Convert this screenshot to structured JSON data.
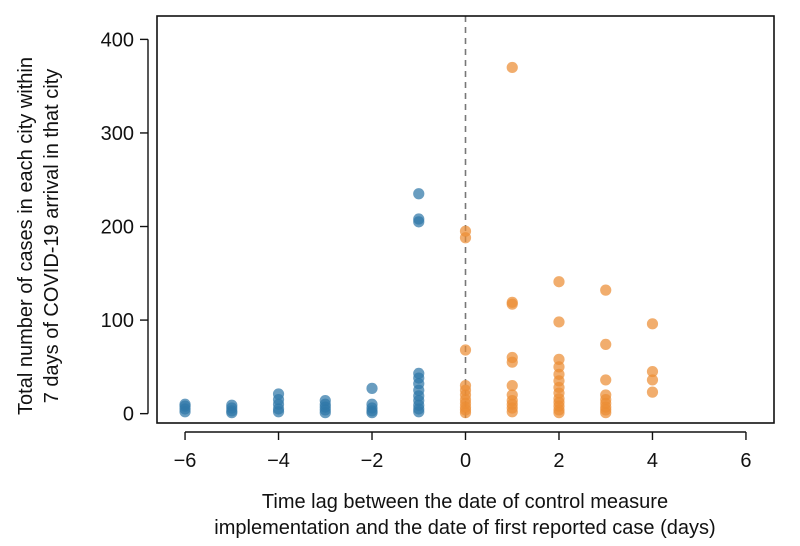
{
  "chart_data": {
    "type": "scatter",
    "title": "",
    "xlabel": [
      "Time lag between the date of control measure",
      "implementation and the date of first reported case (days)"
    ],
    "ylabel": [
      "Total number of cases in each city within",
      "7 days of COVID-19 arrival in that city"
    ],
    "xlim": [
      -6.6,
      6.6
    ],
    "ylim": [
      -10,
      425
    ],
    "xticks": [
      -6,
      -4,
      -2,
      0,
      2,
      4,
      6
    ],
    "xtick_labels": [
      "−6",
      "−4",
      "−2",
      "0",
      "2",
      "4",
      "6"
    ],
    "yticks": [
      0,
      100,
      200,
      300,
      400
    ],
    "ytick_labels": [
      "0",
      "100",
      "200",
      "300",
      "400"
    ],
    "reference_line": {
      "x": 0,
      "style": "dashed",
      "color": "#777777"
    },
    "grid": false,
    "legend": "none",
    "series": [
      {
        "color": "#2f77a8",
        "points": [
          [
            -6,
            2
          ],
          [
            -6,
            5
          ],
          [
            -6,
            8
          ],
          [
            -6,
            10
          ],
          [
            -5,
            1
          ],
          [
            -5,
            3
          ],
          [
            -5,
            6
          ],
          [
            -5,
            9
          ],
          [
            -4,
            2
          ],
          [
            -4,
            5
          ],
          [
            -4,
            10
          ],
          [
            -4,
            15
          ],
          [
            -4,
            21
          ],
          [
            -3,
            1
          ],
          [
            -3,
            4
          ],
          [
            -3,
            7
          ],
          [
            -3,
            10
          ],
          [
            -3,
            14
          ],
          [
            -2,
            1
          ],
          [
            -2,
            3
          ],
          [
            -2,
            6
          ],
          [
            -2,
            10
          ],
          [
            -2,
            27
          ],
          [
            -1,
            2
          ],
          [
            -1,
            5
          ],
          [
            -1,
            9
          ],
          [
            -1,
            14
          ],
          [
            -1,
            19
          ],
          [
            -1,
            25
          ],
          [
            -1,
            32
          ],
          [
            -1,
            38
          ],
          [
            -1,
            43
          ],
          [
            -1,
            205
          ],
          [
            -1,
            208
          ],
          [
            -1,
            235
          ]
        ]
      },
      {
        "color": "#ec8d34",
        "points": [
          [
            0,
            1
          ],
          [
            0,
            4
          ],
          [
            0,
            7
          ],
          [
            0,
            11
          ],
          [
            0,
            15
          ],
          [
            0,
            20
          ],
          [
            0,
            25
          ],
          [
            0,
            30
          ],
          [
            0,
            68
          ],
          [
            0,
            188
          ],
          [
            0,
            195
          ],
          [
            1,
            2
          ],
          [
            1,
            6
          ],
          [
            1,
            10
          ],
          [
            1,
            14
          ],
          [
            1,
            20
          ],
          [
            1,
            30
          ],
          [
            1,
            55
          ],
          [
            1,
            60
          ],
          [
            1,
            117
          ],
          [
            1,
            119
          ],
          [
            1,
            370
          ],
          [
            2,
            1
          ],
          [
            2,
            4
          ],
          [
            2,
            8
          ],
          [
            2,
            12
          ],
          [
            2,
            16
          ],
          [
            2,
            22
          ],
          [
            2,
            28
          ],
          [
            2,
            35
          ],
          [
            2,
            42
          ],
          [
            2,
            50
          ],
          [
            2,
            58
          ],
          [
            2,
            98
          ],
          [
            2,
            141
          ],
          [
            3,
            1
          ],
          [
            3,
            4
          ],
          [
            3,
            7
          ],
          [
            3,
            11
          ],
          [
            3,
            15
          ],
          [
            3,
            20
          ],
          [
            3,
            36
          ],
          [
            3,
            74
          ],
          [
            3,
            132
          ],
          [
            4,
            23
          ],
          [
            4,
            36
          ],
          [
            4,
            45
          ],
          [
            4,
            96
          ]
        ]
      }
    ]
  }
}
